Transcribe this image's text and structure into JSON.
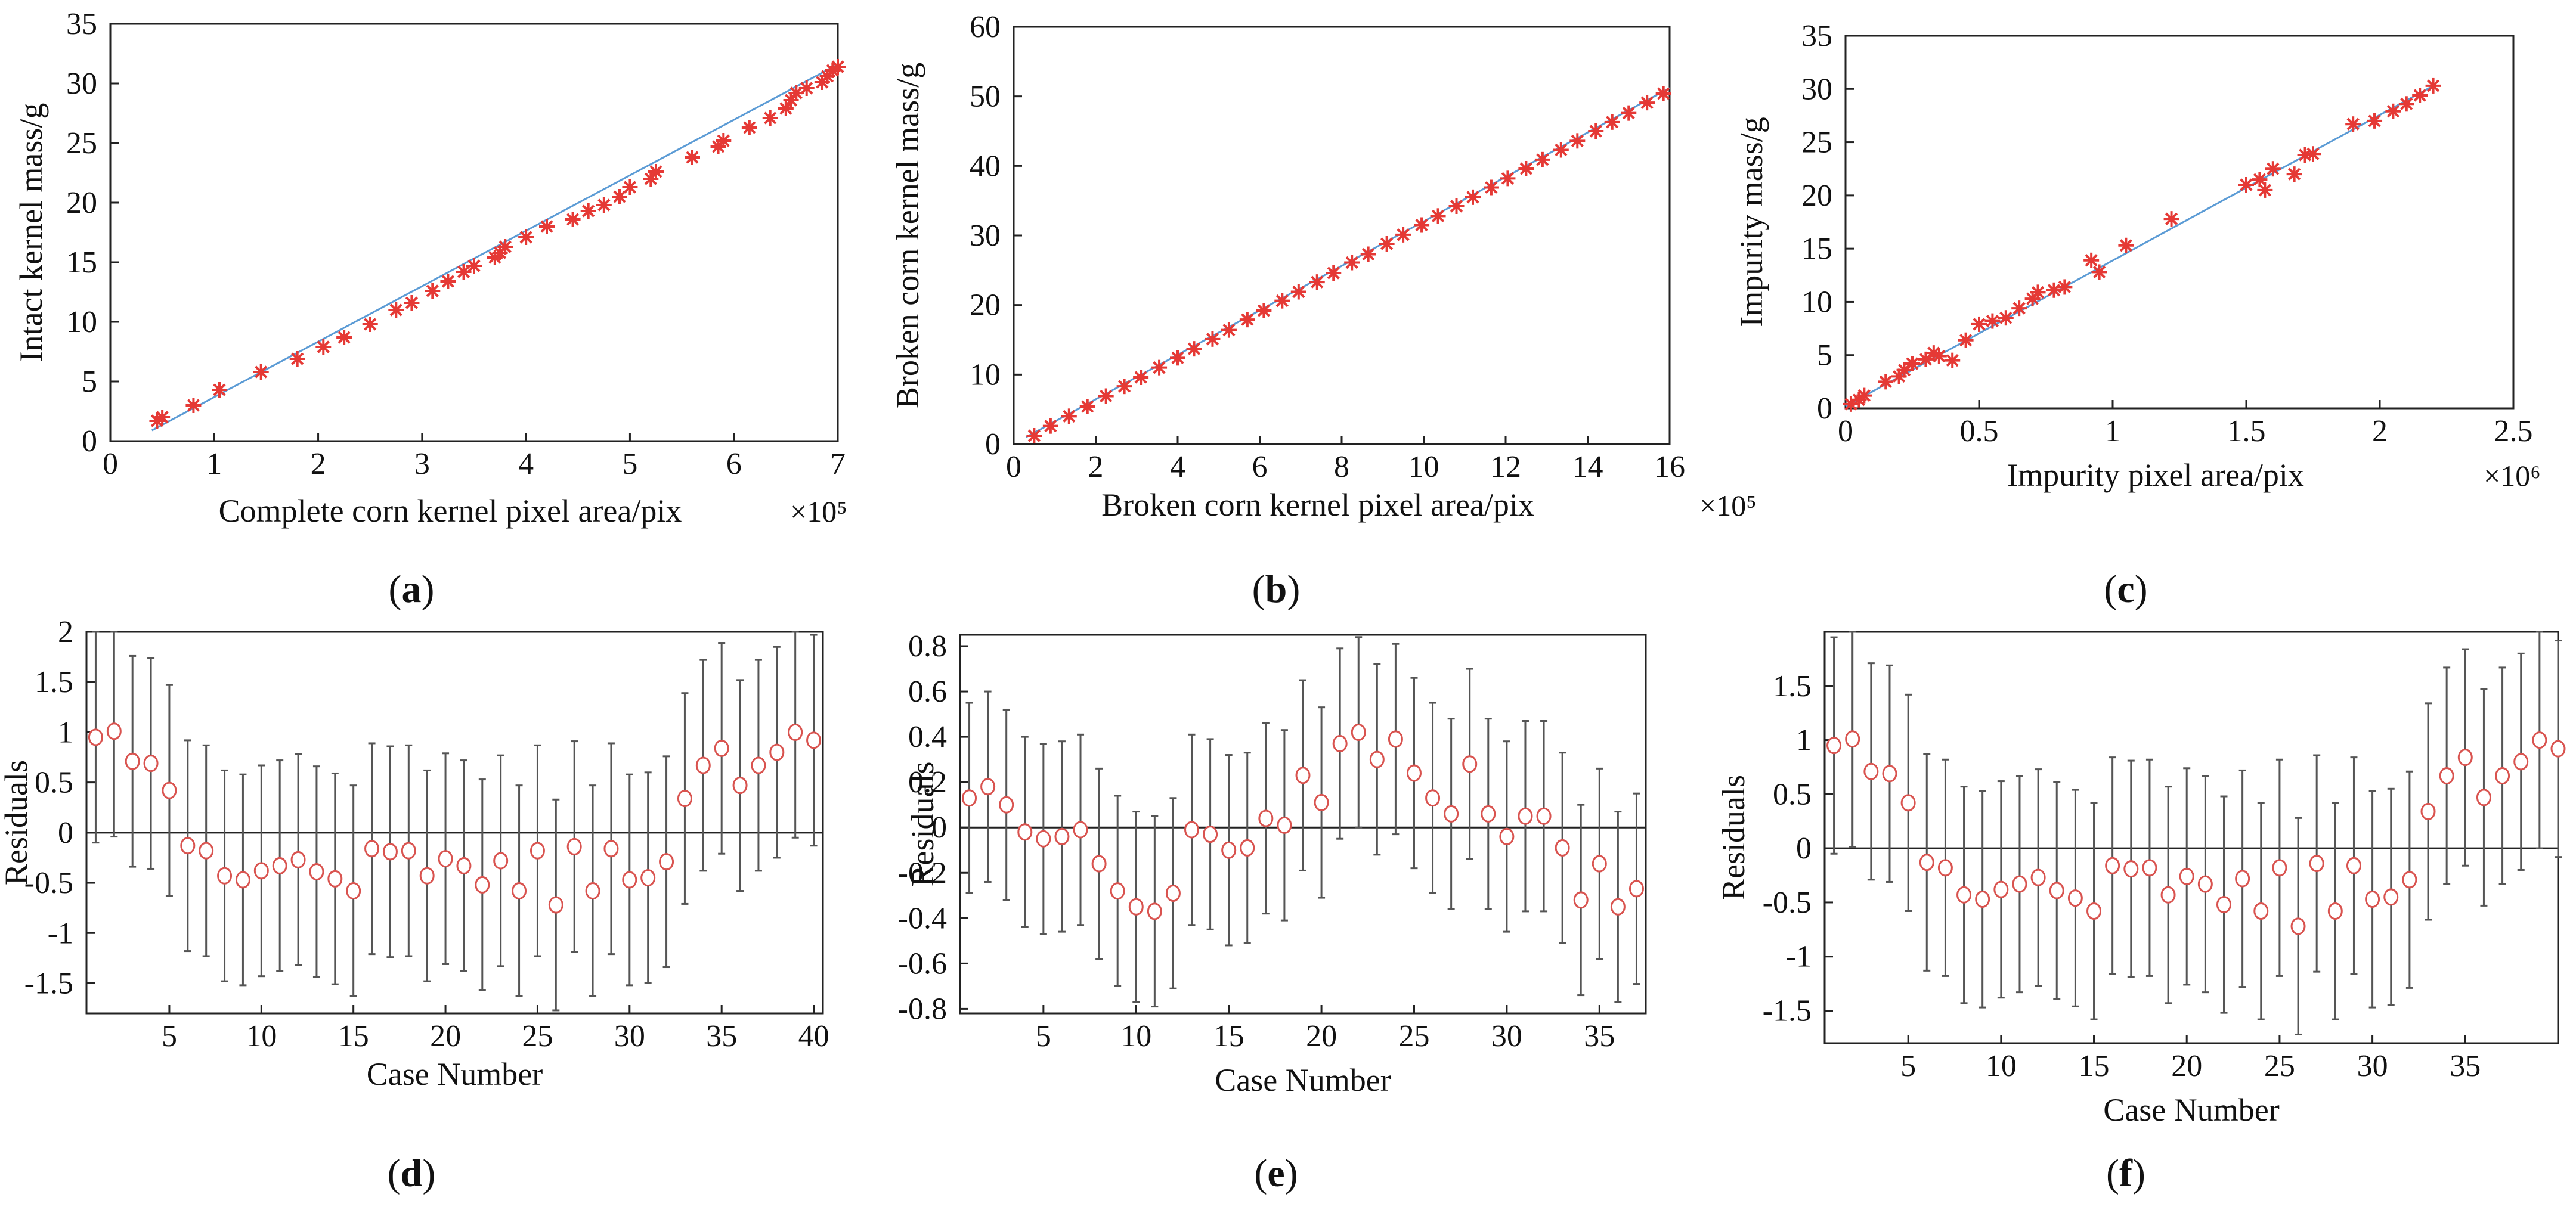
{
  "chart_data": [
    {
      "panel": "a",
      "type": "scatter",
      "title": "",
      "xlabel": "Complete corn kernel pixel area/pix",
      "x_scale_label": "×10⁵",
      "ylabel": "Intact kernel mass/g",
      "xlim": [
        0,
        7
      ],
      "ylim": [
        0,
        35
      ],
      "xticks": [
        "0",
        "1",
        "2",
        "3",
        "4",
        "5",
        "6",
        "7"
      ],
      "yticks": [
        "0",
        "5",
        "10",
        "15",
        "20",
        "25",
        "30",
        "35"
      ],
      "fit_line": {
        "x": [
          0.4,
          7.0
        ],
        "y": [
          0.9,
          31.6
        ]
      },
      "series": [
        {
          "name": "samples",
          "marker": "*",
          "x": [
            0.45,
            0.5,
            0.8,
            1.05,
            1.45,
            1.8,
            2.05,
            2.25,
            2.5,
            2.75,
            2.9,
            3.1,
            3.25,
            3.4,
            3.5,
            3.7,
            3.75,
            3.8,
            4.0,
            4.2,
            4.45,
            4.6,
            4.75,
            4.9,
            5.0,
            5.2,
            5.25,
            5.6,
            5.85,
            5.9,
            6.15,
            6.35,
            6.5,
            6.55,
            6.6,
            6.7,
            6.85,
            6.9,
            6.95,
            7.0
          ],
          "y": [
            1.7,
            2.0,
            3.0,
            4.3,
            5.8,
            6.9,
            7.9,
            8.7,
            9.8,
            11.0,
            11.6,
            12.6,
            13.4,
            14.2,
            14.7,
            15.4,
            15.8,
            16.3,
            17.1,
            18.0,
            18.6,
            19.3,
            19.8,
            20.5,
            21.3,
            22.0,
            22.6,
            23.8,
            24.7,
            25.2,
            26.3,
            27.1,
            27.9,
            28.6,
            29.2,
            29.6,
            30.1,
            30.6,
            31.1,
            31.4
          ]
        }
      ]
    },
    {
      "panel": "b",
      "type": "scatter",
      "title": "",
      "xlabel": "Broken corn kernel pixel area/pix",
      "x_scale_label": "×10⁵",
      "ylabel": "Broken corn kernel mass/g",
      "xlim": [
        0,
        16
      ],
      "ylim": [
        0,
        60
      ],
      "xticks": [
        "0",
        "2",
        "4",
        "6",
        "8",
        "10",
        "12",
        "14",
        "16"
      ],
      "yticks": [
        "0",
        "10",
        "20",
        "30",
        "40",
        "50",
        "60"
      ],
      "fit_line": {
        "x": [
          0.3,
          16.0
        ],
        "y": [
          1.0,
          51.2
        ]
      },
      "series": [
        {
          "name": "samples",
          "marker": "*",
          "x": [
            0.5,
            0.9,
            1.35,
            1.8,
            2.25,
            2.7,
            3.1,
            3.55,
            4.0,
            4.4,
            4.85,
            5.25,
            5.7,
            6.1,
            6.55,
            6.95,
            7.4,
            7.8,
            8.25,
            8.65,
            9.1,
            9.5,
            9.95,
            10.35,
            10.8,
            11.2,
            11.65,
            12.05,
            12.5,
            12.9,
            13.35,
            13.75,
            14.2,
            14.6,
            15.0,
            15.45,
            15.85
          ],
          "y": [
            1.2,
            2.6,
            4.0,
            5.4,
            6.9,
            8.3,
            9.6,
            11.0,
            12.4,
            13.7,
            15.1,
            16.4,
            17.9,
            19.2,
            20.6,
            21.9,
            23.3,
            24.6,
            26.1,
            27.3,
            28.8,
            30.1,
            31.5,
            32.8,
            34.2,
            35.5,
            36.9,
            38.2,
            39.6,
            40.9,
            42.3,
            43.6,
            45.0,
            46.3,
            47.6,
            49.1,
            50.4
          ]
        }
      ]
    },
    {
      "panel": "c",
      "type": "scatter",
      "title": "",
      "xlabel": "Impurity pixel area/pix",
      "x_scale_label": "×10⁶",
      "ylabel": "Impurity mass/g",
      "xlim": [
        0,
        2.5
      ],
      "ylim": [
        0,
        35
      ],
      "xticks": [
        "0",
        "0.5",
        "1",
        "1.5",
        "2",
        "2.5"
      ],
      "yticks": [
        "0",
        "5",
        "10",
        "15",
        "20",
        "25",
        "30",
        "35"
      ],
      "fit_line": {
        "x": [
          0.0,
          2.2
        ],
        "y": [
          0.2,
          30.3
        ]
      },
      "series": [
        {
          "name": "samples",
          "marker": "*",
          "x": [
            0.02,
            0.05,
            0.07,
            0.15,
            0.2,
            0.22,
            0.25,
            0.3,
            0.33,
            0.35,
            0.4,
            0.45,
            0.5,
            0.55,
            0.6,
            0.65,
            0.7,
            0.72,
            0.78,
            0.82,
            0.92,
            0.95,
            1.05,
            1.22,
            1.5,
            1.55,
            1.57,
            1.6,
            1.68,
            1.72,
            1.75,
            1.9,
            1.98,
            2.05,
            2.1,
            2.15,
            2.2
          ],
          "y": [
            0.4,
            0.8,
            1.2,
            2.5,
            3.0,
            3.6,
            4.2,
            4.6,
            5.2,
            4.9,
            4.5,
            6.4,
            7.9,
            8.2,
            8.5,
            9.4,
            10.3,
            10.9,
            11.1,
            11.4,
            13.9,
            12.8,
            15.3,
            17.8,
            21.0,
            21.5,
            20.5,
            22.5,
            22.0,
            23.8,
            23.9,
            26.7,
            27.0,
            27.9,
            28.6,
            29.4,
            30.3
          ]
        }
      ]
    },
    {
      "panel": "d",
      "type": "errorbar",
      "title": "",
      "xlabel": "Case Number",
      "ylabel": "Residuals",
      "xlim": [
        0.5,
        40.5
      ],
      "ylim": [
        -1.8,
        2.0
      ],
      "xticks": [
        "5",
        "10",
        "15",
        "20",
        "25",
        "30",
        "35",
        "40"
      ],
      "yticks": [
        "-1.5",
        "-1",
        "-0.5",
        "0",
        "0.5",
        "1",
        "1.5",
        "2"
      ],
      "residuals": [
        0.95,
        1.01,
        0.71,
        0.69,
        0.42,
        -0.13,
        -0.18,
        -0.43,
        -0.47,
        -0.38,
        -0.33,
        -0.27,
        -0.39,
        -0.46,
        -0.58,
        -0.16,
        -0.19,
        -0.18,
        -0.43,
        -0.26,
        -0.33,
        -0.52,
        -0.28,
        -0.58,
        -0.18,
        -0.72,
        -0.14,
        -0.58,
        -0.16,
        -0.47,
        -0.45,
        -0.29,
        0.34,
        0.67,
        0.84,
        0.47,
        0.67,
        0.8,
        1.0,
        0.92
      ],
      "half_width": 1.05
    },
    {
      "panel": "e",
      "type": "errorbar",
      "title": "",
      "xlabel": "Case Number",
      "ylabel": "Residuals",
      "xlim": [
        0.5,
        37.5
      ],
      "ylim": [
        -0.82,
        0.85
      ],
      "xticks": [
        "5",
        "10",
        "15",
        "20",
        "25",
        "30",
        "35"
      ],
      "yticks": [
        "-0.8",
        "-0.6",
        "-0.4",
        "-0.2",
        "0",
        "0.2",
        "0.4",
        "0.6",
        "0.8"
      ],
      "residuals": [
        0.13,
        0.18,
        0.1,
        -0.02,
        -0.05,
        -0.04,
        -0.01,
        -0.16,
        -0.28,
        -0.35,
        -0.37,
        -0.29,
        -0.01,
        -0.03,
        -0.1,
        -0.09,
        0.04,
        0.01,
        0.23,
        0.11,
        0.37,
        0.42,
        0.3,
        0.39,
        0.24,
        0.13,
        0.06,
        0.28,
        0.06,
        -0.04,
        0.05,
        0.05,
        -0.09,
        -0.32,
        -0.16,
        -0.35,
        -0.27
      ],
      "half_width": 0.42
    },
    {
      "panel": "f",
      "type": "errorbar",
      "title": "",
      "xlabel": "Case Number",
      "ylabel": "Residuals",
      "xlim": [
        0.5,
        40.0
      ],
      "ylim": [
        -1.8,
        2.0
      ],
      "xticks": [
        "5",
        "10",
        "15",
        "20",
        "25",
        "30",
        "35"
      ],
      "yticks": [
        "-1.5",
        "-1",
        "-0.5",
        "0",
        "0.5",
        "1",
        "1.5"
      ],
      "residuals": [
        0.95,
        1.01,
        0.71,
        0.69,
        0.42,
        -0.13,
        -0.18,
        -0.43,
        -0.47,
        -0.38,
        -0.33,
        -0.27,
        -0.39,
        -0.46,
        -0.58,
        -0.16,
        -0.19,
        -0.18,
        -0.43,
        -0.26,
        -0.33,
        -0.52,
        -0.28,
        -0.58,
        -0.18,
        -0.72,
        -0.14,
        -0.58,
        -0.16,
        -0.47,
        -0.45,
        -0.29,
        0.34,
        0.67,
        0.84,
        0.47,
        0.67,
        0.8,
        1.0,
        0.92
      ],
      "half_width": 1.0
    }
  ],
  "panel_labels": {
    "a": {
      "open": "(",
      "letter": "a",
      "close": ")"
    },
    "b": {
      "open": "(",
      "letter": "b",
      "close": ")"
    },
    "c": {
      "open": "(",
      "letter": "c",
      "close": ")"
    },
    "d": {
      "open": "(",
      "letter": "d",
      "close": ")"
    },
    "e": {
      "open": "(",
      "letter": "e",
      "close": ")"
    },
    "f": {
      "open": "(",
      "letter": "f",
      "close": ")"
    }
  },
  "colors": {
    "marker": "#e53935",
    "fit_line": "#5b9bd5",
    "errorbar": "#555555",
    "axis": "#222222",
    "residual_marker": "#d9534f",
    "zero_line": "#222222"
  }
}
